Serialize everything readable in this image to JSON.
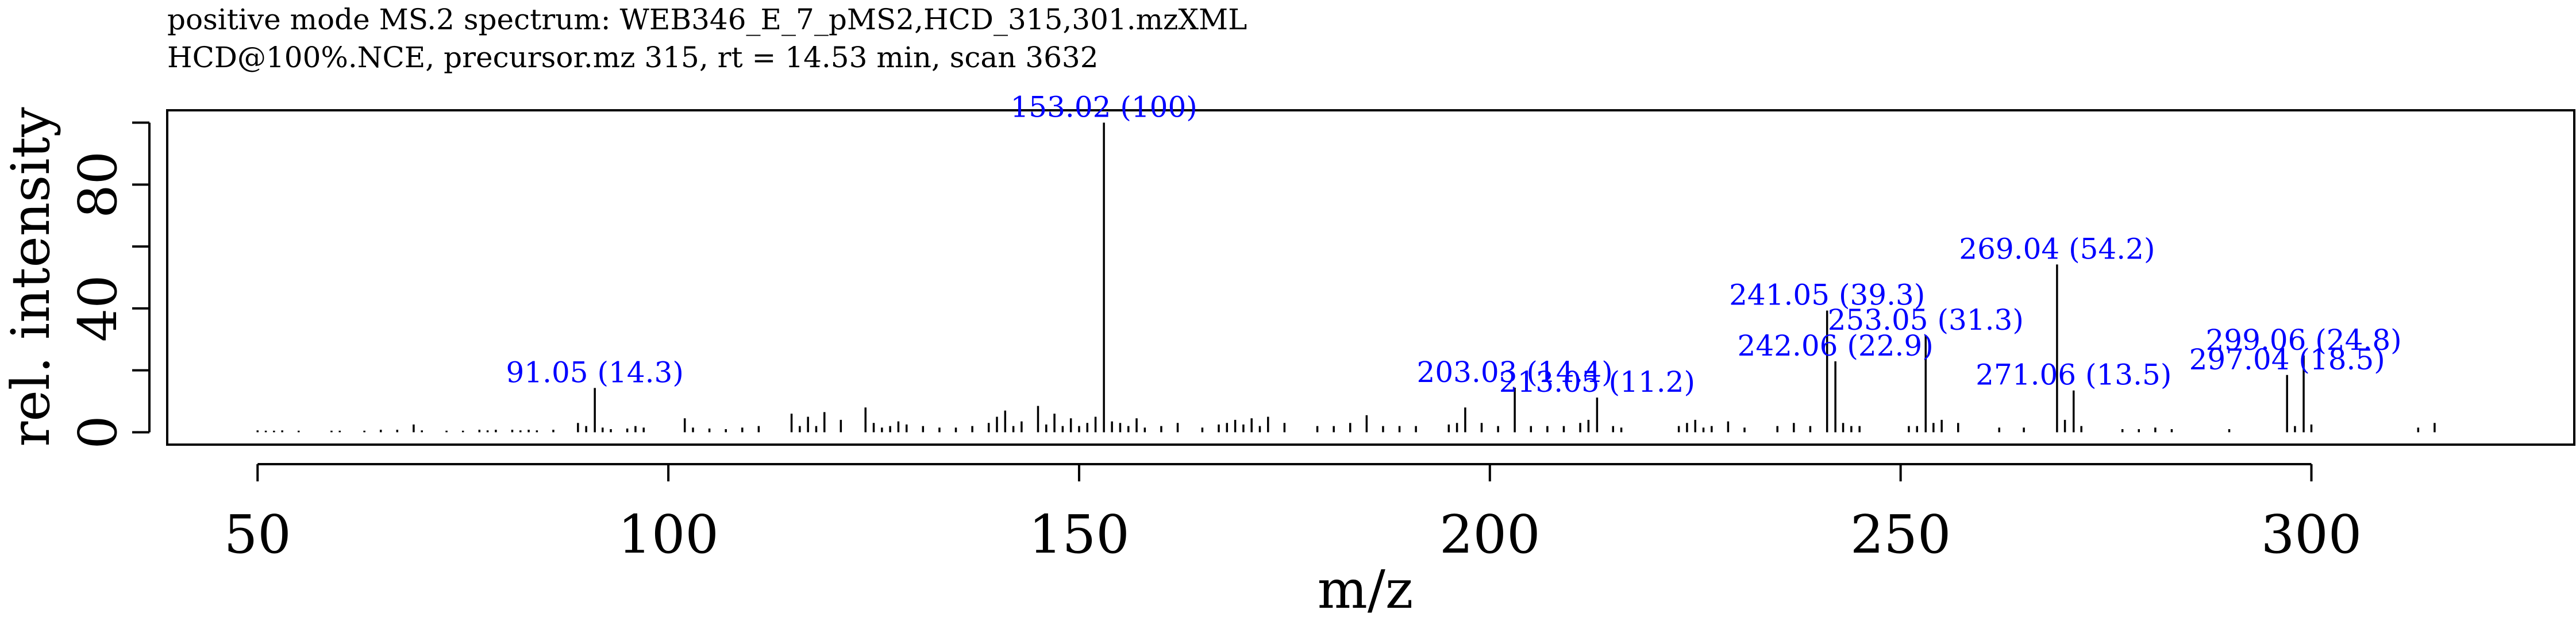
{
  "chart_data": {
    "type": "bar",
    "title": "positive mode MS.2 spectrum: WEB346_E_7_pMS2,HCD_315,301.mzXML",
    "subtitle": "HCD@100%.NCE, precursor.mz 315, rt = 14.53 min, scan 3632",
    "xlabel": "m/z",
    "ylabel": "rel. intensity",
    "xlim": [
      39,
      332
    ],
    "ylim": [
      -4,
      104
    ],
    "x_ticks": [
      50,
      100,
      150,
      200,
      250,
      300
    ],
    "y_ticks": [
      0,
      40,
      80
    ],
    "y_minor_ticks": [
      20,
      60,
      100
    ],
    "grid": false,
    "colors": {
      "peak": "#000000",
      "label": "#0000ff",
      "axis": "#000000"
    },
    "labels": [
      {
        "mz": 91.05,
        "text": "91.05 (14.3)"
      },
      {
        "mz": 153.02,
        "text": "153.02 (100)"
      },
      {
        "mz": 203.03,
        "text": "203.03 (14.4)"
      },
      {
        "mz": 213.05,
        "text": "213.05 (11.2)"
      },
      {
        "mz": 241.05,
        "text": "241.05 (39.3)"
      },
      {
        "mz": 242.06,
        "text": "242.06 (22.9)"
      },
      {
        "mz": 253.05,
        "text": "253.05 (31.3)"
      },
      {
        "mz": 269.04,
        "text": "269.04 (54.2)"
      },
      {
        "mz": 271.06,
        "text": "271.06 (13.5)"
      },
      {
        "mz": 297.04,
        "text": "297.04 (18.5)"
      },
      {
        "mz": 299.06,
        "text": "299.06 (24.8)"
      }
    ],
    "peaks": [
      {
        "mz": 50.0,
        "intensity": 0.6
      },
      {
        "mz": 51.0,
        "intensity": 0.5
      },
      {
        "mz": 52.0,
        "intensity": 0.5
      },
      {
        "mz": 53.0,
        "intensity": 0.6
      },
      {
        "mz": 55.0,
        "intensity": 0.5
      },
      {
        "mz": 59.0,
        "intensity": 0.5
      },
      {
        "mz": 60.0,
        "intensity": 0.5
      },
      {
        "mz": 63.0,
        "intensity": 0.5
      },
      {
        "mz": 65.0,
        "intensity": 0.8
      },
      {
        "mz": 67.0,
        "intensity": 0.8
      },
      {
        "mz": 69.0,
        "intensity": 2.5
      },
      {
        "mz": 70.0,
        "intensity": 0.6
      },
      {
        "mz": 73.0,
        "intensity": 0.5
      },
      {
        "mz": 75.0,
        "intensity": 0.5
      },
      {
        "mz": 77.0,
        "intensity": 0.8
      },
      {
        "mz": 78.0,
        "intensity": 0.6
      },
      {
        "mz": 79.0,
        "intensity": 0.8
      },
      {
        "mz": 81.0,
        "intensity": 0.8
      },
      {
        "mz": 82.0,
        "intensity": 0.6
      },
      {
        "mz": 83.0,
        "intensity": 0.8
      },
      {
        "mz": 84.0,
        "intensity": 0.6
      },
      {
        "mz": 86.0,
        "intensity": 0.8
      },
      {
        "mz": 89.0,
        "intensity": 3.0
      },
      {
        "mz": 90.0,
        "intensity": 2.0
      },
      {
        "mz": 91.05,
        "intensity": 14.3
      },
      {
        "mz": 92.0,
        "intensity": 1.5
      },
      {
        "mz": 93.0,
        "intensity": 1.0
      },
      {
        "mz": 95.0,
        "intensity": 1.2
      },
      {
        "mz": 96.0,
        "intensity": 2.0
      },
      {
        "mz": 97.0,
        "intensity": 1.5
      },
      {
        "mz": 102.0,
        "intensity": 4.5
      },
      {
        "mz": 103.0,
        "intensity": 1.5
      },
      {
        "mz": 105.0,
        "intensity": 1.2
      },
      {
        "mz": 107.0,
        "intensity": 1.0
      },
      {
        "mz": 109.0,
        "intensity": 1.5
      },
      {
        "mz": 111.0,
        "intensity": 2.0
      },
      {
        "mz": 115.0,
        "intensity": 6.0
      },
      {
        "mz": 116.0,
        "intensity": 2.0
      },
      {
        "mz": 117.0,
        "intensity": 5.0
      },
      {
        "mz": 118.0,
        "intensity": 2.0
      },
      {
        "mz": 119.0,
        "intensity": 6.5
      },
      {
        "mz": 121.0,
        "intensity": 4.0
      },
      {
        "mz": 124.0,
        "intensity": 8.0
      },
      {
        "mz": 125.0,
        "intensity": 3.0
      },
      {
        "mz": 126.0,
        "intensity": 1.5
      },
      {
        "mz": 127.0,
        "intensity": 2.0
      },
      {
        "mz": 128.0,
        "intensity": 3.5
      },
      {
        "mz": 129.0,
        "intensity": 2.5
      },
      {
        "mz": 131.0,
        "intensity": 2.0
      },
      {
        "mz": 133.0,
        "intensity": 1.5
      },
      {
        "mz": 135.0,
        "intensity": 1.5
      },
      {
        "mz": 137.0,
        "intensity": 2.0
      },
      {
        "mz": 139.0,
        "intensity": 3.0
      },
      {
        "mz": 140.0,
        "intensity": 5.0
      },
      {
        "mz": 141.0,
        "intensity": 7.0
      },
      {
        "mz": 142.0,
        "intensity": 2.0
      },
      {
        "mz": 143.0,
        "intensity": 3.5
      },
      {
        "mz": 145.0,
        "intensity": 8.5
      },
      {
        "mz": 146.0,
        "intensity": 2.5
      },
      {
        "mz": 147.0,
        "intensity": 6.0
      },
      {
        "mz": 148.0,
        "intensity": 2.0
      },
      {
        "mz": 149.0,
        "intensity": 4.5
      },
      {
        "mz": 150.0,
        "intensity": 2.0
      },
      {
        "mz": 151.0,
        "intensity": 3.0
      },
      {
        "mz": 152.0,
        "intensity": 5.0
      },
      {
        "mz": 153.02,
        "intensity": 100.0
      },
      {
        "mz": 154.0,
        "intensity": 3.5
      },
      {
        "mz": 155.0,
        "intensity": 3.0
      },
      {
        "mz": 156.0,
        "intensity": 2.0
      },
      {
        "mz": 157.0,
        "intensity": 4.5
      },
      {
        "mz": 158.0,
        "intensity": 1.5
      },
      {
        "mz": 160.0,
        "intensity": 2.0
      },
      {
        "mz": 162.0,
        "intensity": 3.0
      },
      {
        "mz": 165.0,
        "intensity": 1.5
      },
      {
        "mz": 167.0,
        "intensity": 2.5
      },
      {
        "mz": 168.0,
        "intensity": 3.0
      },
      {
        "mz": 169.0,
        "intensity": 4.0
      },
      {
        "mz": 170.0,
        "intensity": 2.5
      },
      {
        "mz": 171.0,
        "intensity": 4.5
      },
      {
        "mz": 172.0,
        "intensity": 2.0
      },
      {
        "mz": 173.0,
        "intensity": 5.0
      },
      {
        "mz": 175.0,
        "intensity": 3.0
      },
      {
        "mz": 179.0,
        "intensity": 2.0
      },
      {
        "mz": 181.0,
        "intensity": 2.0
      },
      {
        "mz": 183.0,
        "intensity": 3.0
      },
      {
        "mz": 185.0,
        "intensity": 5.5
      },
      {
        "mz": 187.0,
        "intensity": 2.0
      },
      {
        "mz": 189.0,
        "intensity": 2.0
      },
      {
        "mz": 191.0,
        "intensity": 2.0
      },
      {
        "mz": 195.0,
        "intensity": 2.5
      },
      {
        "mz": 196.0,
        "intensity": 3.0
      },
      {
        "mz": 197.0,
        "intensity": 8.0
      },
      {
        "mz": 199.0,
        "intensity": 3.0
      },
      {
        "mz": 201.0,
        "intensity": 2.0
      },
      {
        "mz": 203.03,
        "intensity": 14.4
      },
      {
        "mz": 205.0,
        "intensity": 2.0
      },
      {
        "mz": 207.0,
        "intensity": 2.0
      },
      {
        "mz": 209.0,
        "intensity": 2.0
      },
      {
        "mz": 211.0,
        "intensity": 3.0
      },
      {
        "mz": 212.0,
        "intensity": 4.0
      },
      {
        "mz": 213.05,
        "intensity": 11.2
      },
      {
        "mz": 215.0,
        "intensity": 2.0
      },
      {
        "mz": 216.0,
        "intensity": 1.5
      },
      {
        "mz": 223.0,
        "intensity": 2.0
      },
      {
        "mz": 224.0,
        "intensity": 3.0
      },
      {
        "mz": 225.0,
        "intensity": 4.0
      },
      {
        "mz": 226.0,
        "intensity": 1.5
      },
      {
        "mz": 227.0,
        "intensity": 2.0
      },
      {
        "mz": 229.0,
        "intensity": 3.5
      },
      {
        "mz": 231.0,
        "intensity": 1.5
      },
      {
        "mz": 235.0,
        "intensity": 2.0
      },
      {
        "mz": 237.0,
        "intensity": 3.0
      },
      {
        "mz": 239.0,
        "intensity": 2.0
      },
      {
        "mz": 241.05,
        "intensity": 39.3
      },
      {
        "mz": 242.06,
        "intensity": 22.9
      },
      {
        "mz": 243.0,
        "intensity": 3.0
      },
      {
        "mz": 244.0,
        "intensity": 2.0
      },
      {
        "mz": 245.0,
        "intensity": 2.0
      },
      {
        "mz": 251.0,
        "intensity": 2.0
      },
      {
        "mz": 252.0,
        "intensity": 2.0
      },
      {
        "mz": 253.05,
        "intensity": 31.3
      },
      {
        "mz": 254.0,
        "intensity": 3.0
      },
      {
        "mz": 255.0,
        "intensity": 4.0
      },
      {
        "mz": 257.0,
        "intensity": 3.0
      },
      {
        "mz": 262.0,
        "intensity": 1.5
      },
      {
        "mz": 265.0,
        "intensity": 1.5
      },
      {
        "mz": 269.04,
        "intensity": 54.2
      },
      {
        "mz": 270.0,
        "intensity": 4.0
      },
      {
        "mz": 271.06,
        "intensity": 13.5
      },
      {
        "mz": 272.0,
        "intensity": 2.0
      },
      {
        "mz": 277.0,
        "intensity": 1.0
      },
      {
        "mz": 279.0,
        "intensity": 1.0
      },
      {
        "mz": 281.0,
        "intensity": 1.5
      },
      {
        "mz": 283.0,
        "intensity": 1.0
      },
      {
        "mz": 290.0,
        "intensity": 1.0
      },
      {
        "mz": 297.04,
        "intensity": 18.5
      },
      {
        "mz": 298.0,
        "intensity": 2.0
      },
      {
        "mz": 299.06,
        "intensity": 24.8
      },
      {
        "mz": 300.0,
        "intensity": 2.5
      },
      {
        "mz": 313.0,
        "intensity": 1.5
      },
      {
        "mz": 315.0,
        "intensity": 3.0
      }
    ]
  }
}
